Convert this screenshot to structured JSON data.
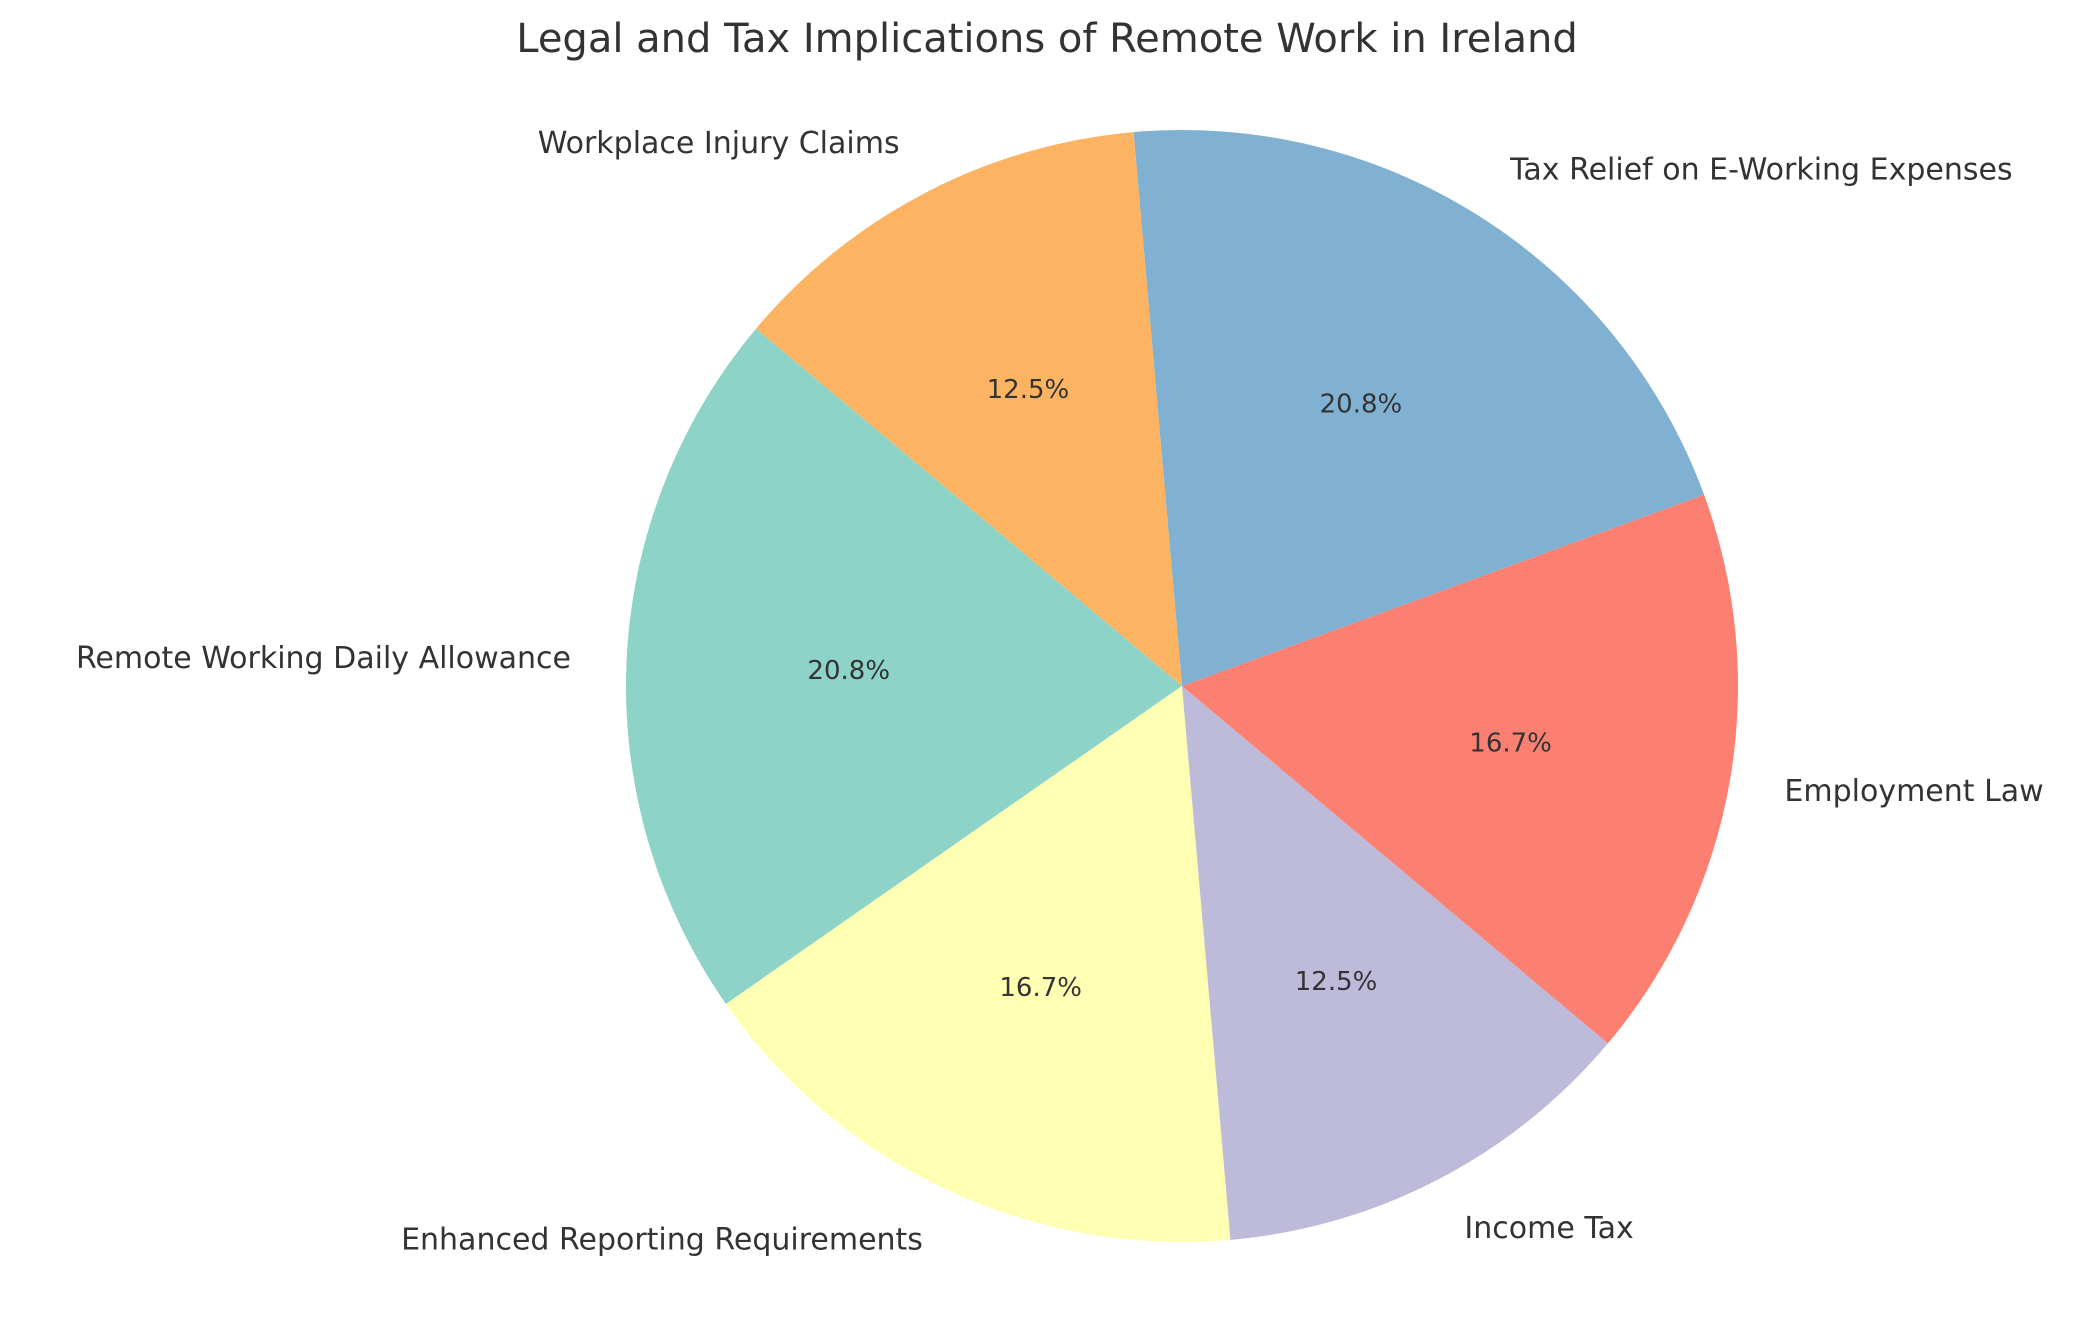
{
  "chart_data": {
    "type": "pie",
    "title": "Legal and Tax Implications of Remote Work in Ireland",
    "slices": [
      {
        "label": "Remote Working Daily Allowance",
        "value": 20.8,
        "pct_label": "20.8%",
        "color": "#8dd3c7"
      },
      {
        "label": "Enhanced Reporting Requirements",
        "value": 16.7,
        "pct_label": "16.7%",
        "color": "#ffffb3"
      },
      {
        "label": "Income Tax",
        "value": 12.5,
        "pct_label": "12.5%",
        "color": "#bebada"
      },
      {
        "label": "Employment Law",
        "value": 16.7,
        "pct_label": "16.7%",
        "color": "#fb8072"
      },
      {
        "label": "Tax Relief on E-Working Expenses",
        "value": 20.8,
        "pct_label": "20.8%",
        "color": "#80b1d3"
      },
      {
        "label": "Workplace Injury Claims",
        "value": 12.5,
        "pct_label": "12.5%",
        "color": "#fdb462"
      }
    ],
    "start_angle_deg": 140,
    "direction": "counterclockwise",
    "legend": "none"
  }
}
